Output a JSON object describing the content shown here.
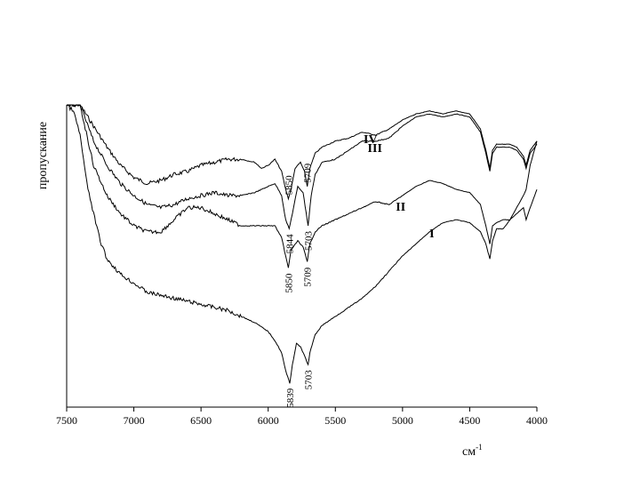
{
  "chart_data": {
    "type": "line",
    "title": "",
    "xlabel": "см",
    "xlabel_superscript": "-1",
    "ylabel": "пропускание",
    "xlim": [
      7500,
      4000
    ],
    "ylim": [
      0,
      100
    ],
    "x_ticks": [
      7500,
      7000,
      6500,
      6000,
      5500,
      5000,
      4500,
      4000
    ],
    "grid": false,
    "legend": "none",
    "series": [
      {
        "name": "IV",
        "color": "#000000",
        "points": [
          [
            7500,
            100
          ],
          [
            7400,
            100
          ],
          [
            7300,
            93
          ],
          [
            7200,
            86
          ],
          [
            7100,
            80
          ],
          [
            7000,
            76
          ],
          [
            6900,
            74
          ],
          [
            6800,
            75
          ],
          [
            6700,
            77
          ],
          [
            6600,
            78
          ],
          [
            6500,
            80
          ],
          [
            6400,
            81
          ],
          [
            6300,
            82
          ],
          [
            6200,
            82
          ],
          [
            6100,
            81
          ],
          [
            6050,
            79
          ],
          [
            6000,
            80
          ],
          [
            5950,
            82
          ],
          [
            5900,
            78
          ],
          [
            5870,
            72
          ],
          [
            5850,
            69
          ],
          [
            5830,
            72
          ],
          [
            5800,
            79
          ],
          [
            5760,
            81
          ],
          [
            5730,
            78
          ],
          [
            5709,
            73
          ],
          [
            5690,
            79
          ],
          [
            5650,
            84
          ],
          [
            5600,
            86
          ],
          [
            5500,
            88
          ],
          [
            5400,
            89
          ],
          [
            5300,
            91
          ],
          [
            5200,
            90
          ],
          [
            5100,
            92
          ],
          [
            5000,
            95
          ],
          [
            4900,
            97
          ],
          [
            4800,
            98
          ],
          [
            4700,
            97
          ],
          [
            4600,
            98
          ],
          [
            4500,
            97
          ],
          [
            4420,
            92
          ],
          [
            4380,
            85
          ],
          [
            4350,
            79
          ],
          [
            4330,
            85
          ],
          [
            4300,
            87
          ],
          [
            4250,
            87
          ],
          [
            4200,
            87
          ],
          [
            4150,
            86
          ],
          [
            4100,
            83
          ],
          [
            4080,
            80
          ],
          [
            4050,
            85
          ],
          [
            4000,
            88
          ]
        ],
        "label": "IV"
      },
      {
        "name": "III",
        "color": "#000000",
        "points": [
          [
            7500,
            100
          ],
          [
            7400,
            100
          ],
          [
            7300,
            88
          ],
          [
            7200,
            80
          ],
          [
            7100,
            74
          ],
          [
            7000,
            70
          ],
          [
            6900,
            67
          ],
          [
            6800,
            66
          ],
          [
            6700,
            67
          ],
          [
            6600,
            69
          ],
          [
            6500,
            70
          ],
          [
            6400,
            71
          ],
          [
            6300,
            70
          ],
          [
            6200,
            70
          ],
          [
            6100,
            71
          ],
          [
            6000,
            73
          ],
          [
            5950,
            74
          ],
          [
            5900,
            70
          ],
          [
            5870,
            62
          ],
          [
            5844,
            59
          ],
          [
            5820,
            64
          ],
          [
            5780,
            73
          ],
          [
            5740,
            71
          ],
          [
            5703,
            60
          ],
          [
            5680,
            70
          ],
          [
            5650,
            77
          ],
          [
            5600,
            81
          ],
          [
            5500,
            82
          ],
          [
            5400,
            85
          ],
          [
            5300,
            88
          ],
          [
            5200,
            88
          ],
          [
            5100,
            89
          ],
          [
            5000,
            93
          ],
          [
            4900,
            96
          ],
          [
            4800,
            97
          ],
          [
            4700,
            96
          ],
          [
            4600,
            97
          ],
          [
            4500,
            96
          ],
          [
            4420,
            91
          ],
          [
            4380,
            84
          ],
          [
            4350,
            78
          ],
          [
            4330,
            84
          ],
          [
            4300,
            86
          ],
          [
            4250,
            86
          ],
          [
            4200,
            86
          ],
          [
            4150,
            85
          ],
          [
            4100,
            82
          ],
          [
            4080,
            79
          ],
          [
            4050,
            84
          ],
          [
            4000,
            87
          ]
        ],
        "label": "III"
      },
      {
        "name": "II",
        "color": "#000000",
        "points": [
          [
            7500,
            100
          ],
          [
            7400,
            100
          ],
          [
            7300,
            80
          ],
          [
            7200,
            70
          ],
          [
            7100,
            64
          ],
          [
            7000,
            60
          ],
          [
            6900,
            58
          ],
          [
            6800,
            58
          ],
          [
            6700,
            62
          ],
          [
            6600,
            66
          ],
          [
            6500,
            66
          ],
          [
            6400,
            64
          ],
          [
            6300,
            62
          ],
          [
            6200,
            60
          ],
          [
            6100,
            60
          ],
          [
            6000,
            60
          ],
          [
            5950,
            60
          ],
          [
            5900,
            56
          ],
          [
            5870,
            50
          ],
          [
            5850,
            46
          ],
          [
            5830,
            52
          ],
          [
            5780,
            55
          ],
          [
            5740,
            53
          ],
          [
            5709,
            48
          ],
          [
            5690,
            54
          ],
          [
            5650,
            58
          ],
          [
            5600,
            60
          ],
          [
            5500,
            62
          ],
          [
            5400,
            64
          ],
          [
            5300,
            66
          ],
          [
            5200,
            68
          ],
          [
            5100,
            67
          ],
          [
            5000,
            70
          ],
          [
            4900,
            73
          ],
          [
            4800,
            75
          ],
          [
            4700,
            74
          ],
          [
            4600,
            72
          ],
          [
            4500,
            71
          ],
          [
            4420,
            67
          ],
          [
            4380,
            60
          ],
          [
            4350,
            54
          ],
          [
            4330,
            60
          ],
          [
            4300,
            61
          ],
          [
            4250,
            62
          ],
          [
            4200,
            62
          ],
          [
            4150,
            64
          ],
          [
            4100,
            66
          ],
          [
            4080,
            62
          ],
          [
            4050,
            66
          ],
          [
            4000,
            72
          ]
        ],
        "label": "II"
      },
      {
        "name": "I",
        "color": "#000000",
        "points": [
          [
            7500,
            100
          ],
          [
            7450,
            98
          ],
          [
            7400,
            90
          ],
          [
            7350,
            74
          ],
          [
            7300,
            64
          ],
          [
            7250,
            55
          ],
          [
            7200,
            49
          ],
          [
            7100,
            44
          ],
          [
            7000,
            41
          ],
          [
            6900,
            38
          ],
          [
            6800,
            37
          ],
          [
            6700,
            36
          ],
          [
            6600,
            35
          ],
          [
            6500,
            34
          ],
          [
            6400,
            33
          ],
          [
            6300,
            32
          ],
          [
            6200,
            30
          ],
          [
            6100,
            28
          ],
          [
            6000,
            25
          ],
          [
            5950,
            22
          ],
          [
            5900,
            18
          ],
          [
            5870,
            12
          ],
          [
            5839,
            8
          ],
          [
            5820,
            14
          ],
          [
            5790,
            21
          ],
          [
            5760,
            20
          ],
          [
            5730,
            17
          ],
          [
            5703,
            14
          ],
          [
            5690,
            18
          ],
          [
            5650,
            24
          ],
          [
            5600,
            27
          ],
          [
            5500,
            30
          ],
          [
            5400,
            33
          ],
          [
            5300,
            36
          ],
          [
            5200,
            40
          ],
          [
            5100,
            45
          ],
          [
            5000,
            50
          ],
          [
            4900,
            54
          ],
          [
            4800,
            58
          ],
          [
            4700,
            61
          ],
          [
            4600,
            62
          ],
          [
            4500,
            61
          ],
          [
            4420,
            58
          ],
          [
            4380,
            54
          ],
          [
            4350,
            49
          ],
          [
            4330,
            55
          ],
          [
            4300,
            59
          ],
          [
            4250,
            59
          ],
          [
            4200,
            62
          ],
          [
            4150,
            66
          ],
          [
            4100,
            70
          ],
          [
            4080,
            72
          ],
          [
            4050,
            80
          ],
          [
            4000,
            88
          ]
        ],
        "label": "I"
      }
    ],
    "annotations": [
      {
        "text": "5850",
        "x": 5850,
        "series": "IV"
      },
      {
        "text": "5709",
        "x": 5709,
        "series": "IV"
      },
      {
        "text": "5844",
        "x": 5844,
        "series": "III"
      },
      {
        "text": "5703",
        "x": 5703,
        "series": "III"
      },
      {
        "text": "5850",
        "x": 5850,
        "series": "II"
      },
      {
        "text": "5709",
        "x": 5709,
        "series": "II"
      },
      {
        "text": "5839",
        "x": 5839,
        "series": "I"
      },
      {
        "text": "5703",
        "x": 5703,
        "series": "I"
      }
    ]
  }
}
